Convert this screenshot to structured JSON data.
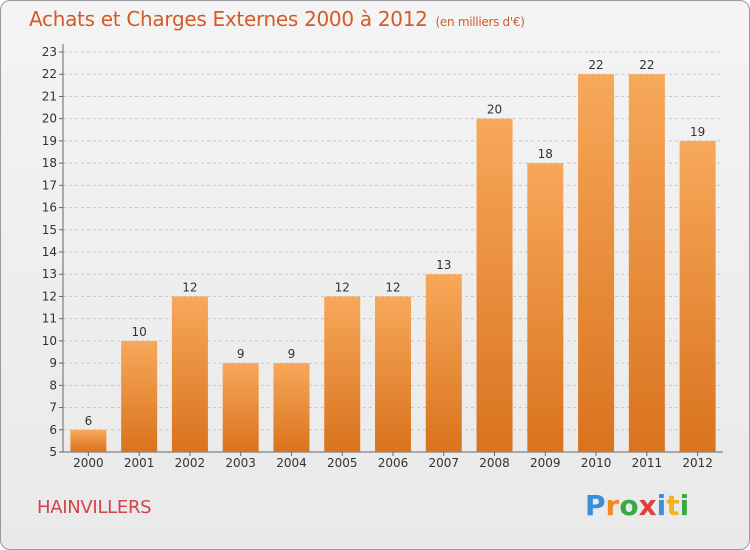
{
  "header": {
    "title": "Achats et Charges Externes 2000 à 2012",
    "subtitle": "(en milliers d'€)"
  },
  "commune": "HAINVILLERS",
  "logo": {
    "text": "Proxiti",
    "letters": [
      {
        "ch": "P",
        "color": "#3a8fd8"
      },
      {
        "ch": "r",
        "color": "#f08a1c"
      },
      {
        "ch": "o",
        "color": "#3aa845"
      },
      {
        "ch": "x",
        "color": "#e23d3d"
      },
      {
        "ch": "i",
        "color": "#3a8fd8"
      },
      {
        "ch": "t",
        "color": "#f0b41c"
      },
      {
        "ch": "i",
        "color": "#3aa845"
      }
    ]
  },
  "colors": {
    "bar_top": "#f7a85a",
    "bar_bottom": "#d9731e",
    "accent": "#d35a2a"
  },
  "chart_data": {
    "type": "bar",
    "title": "Achats et Charges Externes 2000 à 2012",
    "subtitle": "(en milliers d'€)",
    "categories": [
      "2000",
      "2001",
      "2002",
      "2003",
      "2004",
      "2005",
      "2006",
      "2007",
      "2008",
      "2009",
      "2010",
      "2011",
      "2012"
    ],
    "values": [
      6,
      10,
      12,
      9,
      9,
      12,
      12,
      13,
      20,
      18,
      22,
      22,
      19
    ],
    "ylim": [
      5,
      23
    ],
    "yticks": [
      5,
      6,
      7,
      8,
      9,
      10,
      11,
      12,
      13,
      14,
      15,
      16,
      17,
      18,
      19,
      20,
      21,
      22,
      23
    ],
    "grid": true,
    "xlabel": "",
    "ylabel": ""
  }
}
